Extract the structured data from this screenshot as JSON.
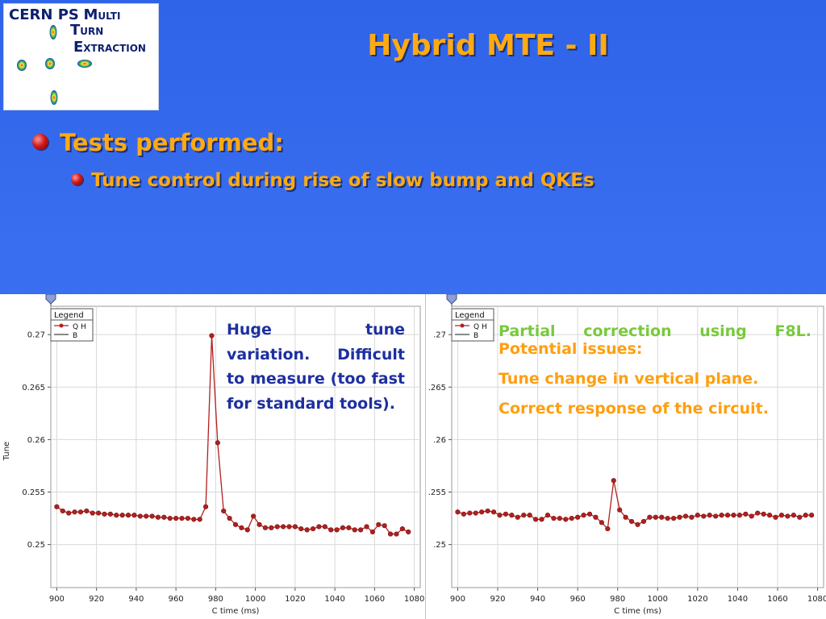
{
  "logo": {
    "line1": "CERN PS",
    "m": "M",
    "ulti": "ULTI",
    "t": "T",
    "urn": "URN",
    "e": "E",
    "xtraction": "XTRACTION"
  },
  "slide": {
    "title": "Hybrid MTE - II",
    "bullet1": "Tests performed:",
    "bullet2": "Tune control during rise of slow bump and QKEs"
  },
  "notes": {
    "left": "Huge tune variation. Difficult to measure (too fast for standard tools).",
    "right_green": "Partial correction using F8L.",
    "right_orange_1": "Potential issues:",
    "right_orange_2": "Tune change in vertical plane.",
    "right_orange_3": "Correct response of the circuit."
  },
  "colors": {
    "title": "#ffaa12",
    "note_left": "#1d2fa0",
    "note_green": "#78c93c",
    "note_orange": "#ff9e10",
    "series": "#b02020"
  },
  "chart_data": [
    {
      "type": "line",
      "xlabel": "C time (ms)",
      "ylabel": "Tune",
      "xlim": [
        897,
        1083
      ],
      "ylim": [
        0.2459,
        0.2727
      ],
      "xticks": [
        900,
        920,
        940,
        960,
        980,
        1000,
        1020,
        1040,
        1060,
        1080
      ],
      "yticks": [
        0.25,
        0.255,
        0.26,
        0.265,
        0.27
      ],
      "ytick_labels": [
        "0.25",
        "0.255",
        "0.26",
        "0.265",
        "0.27"
      ],
      "grid": true,
      "legend": {
        "title": "Legend",
        "position": "top-left",
        "entries": [
          "Q H",
          "B"
        ]
      },
      "series": [
        {
          "name": "Q H",
          "x": [
            900,
            903,
            906,
            909,
            912,
            915,
            918,
            921,
            924,
            927,
            930,
            933,
            936,
            939,
            942,
            945,
            948,
            951,
            954,
            957,
            960,
            963,
            966,
            969,
            972,
            975,
            978,
            981,
            984,
            987,
            990,
            993,
            996,
            999,
            1002,
            1005,
            1008,
            1011,
            1014,
            1017,
            1020,
            1023,
            1026,
            1029,
            1032,
            1035,
            1038,
            1041,
            1044,
            1047,
            1050,
            1053,
            1056,
            1059,
            1062,
            1065,
            1068,
            1071,
            1074,
            1077
          ],
          "y": [
            0.2536,
            0.2532,
            0.253,
            0.2531,
            0.2531,
            0.2532,
            0.253,
            0.253,
            0.2529,
            0.2529,
            0.2528,
            0.2528,
            0.2528,
            0.2528,
            0.2527,
            0.2527,
            0.2527,
            0.2526,
            0.2526,
            0.2525,
            0.2525,
            0.2525,
            0.2525,
            0.2524,
            0.2524,
            0.2536,
            0.2699,
            0.2597,
            0.2532,
            0.2525,
            0.2519,
            0.2516,
            0.2514,
            0.2527,
            0.2519,
            0.2516,
            0.2516,
            0.2517,
            0.2517,
            0.2517,
            0.2517,
            0.2515,
            0.2514,
            0.2515,
            0.2517,
            0.2517,
            0.2514,
            0.2514,
            0.2516,
            0.2516,
            0.2514,
            0.2514,
            0.2517,
            0.2512,
            0.2519,
            0.2518,
            0.251,
            0.251,
            0.2515,
            0.2512
          ]
        },
        {
          "name": "B",
          "x": [],
          "y": []
        }
      ]
    },
    {
      "type": "line",
      "xlabel": "C time (ms)",
      "ylabel": "",
      "xlim": [
        897,
        1083
      ],
      "ylim": [
        0.2459,
        0.2727
      ],
      "xticks": [
        900,
        920,
        940,
        960,
        980,
        1000,
        1020,
        1040,
        1060,
        1080
      ],
      "yticks": [
        0.25,
        0.255,
        0.26,
        0.265,
        0.27
      ],
      "ytick_labels": [
        ".25",
        ".255",
        ".26",
        ".265",
        ".27"
      ],
      "grid": true,
      "legend": {
        "title": "Legend",
        "position": "top-left",
        "entries": [
          "Q H",
          "B"
        ]
      },
      "series": [
        {
          "name": "Q H",
          "x": [
            900,
            903,
            906,
            909,
            912,
            915,
            918,
            921,
            924,
            927,
            930,
            933,
            936,
            939,
            942,
            945,
            948,
            951,
            954,
            957,
            960,
            963,
            966,
            969,
            972,
            975,
            978,
            981,
            984,
            987,
            990,
            993,
            996,
            999,
            1002,
            1005,
            1008,
            1011,
            1014,
            1017,
            1020,
            1023,
            1026,
            1029,
            1032,
            1035,
            1038,
            1041,
            1044,
            1047,
            1050,
            1053,
            1056,
            1059,
            1062,
            1065,
            1068,
            1071,
            1074,
            1077
          ],
          "y": [
            0.2531,
            0.2529,
            0.253,
            0.253,
            0.2531,
            0.2532,
            0.2531,
            0.2528,
            0.2529,
            0.2528,
            0.2526,
            0.2528,
            0.2528,
            0.2524,
            0.2524,
            0.2528,
            0.2525,
            0.2525,
            0.2524,
            0.2525,
            0.2526,
            0.2528,
            0.2529,
            0.2526,
            0.2521,
            0.2515,
            0.2561,
            0.2533,
            0.2526,
            0.2522,
            0.2519,
            0.2522,
            0.2526,
            0.2526,
            0.2526,
            0.2525,
            0.2525,
            0.2526,
            0.2527,
            0.2526,
            0.2528,
            0.2527,
            0.2528,
            0.2527,
            0.2528,
            0.2528,
            0.2528,
            0.2528,
            0.2529,
            0.2527,
            0.253,
            0.2529,
            0.2528,
            0.2526,
            0.2528,
            0.2527,
            0.2528,
            0.2526,
            0.2528,
            0.2528
          ]
        },
        {
          "name": "B",
          "x": [],
          "y": []
        }
      ]
    }
  ]
}
